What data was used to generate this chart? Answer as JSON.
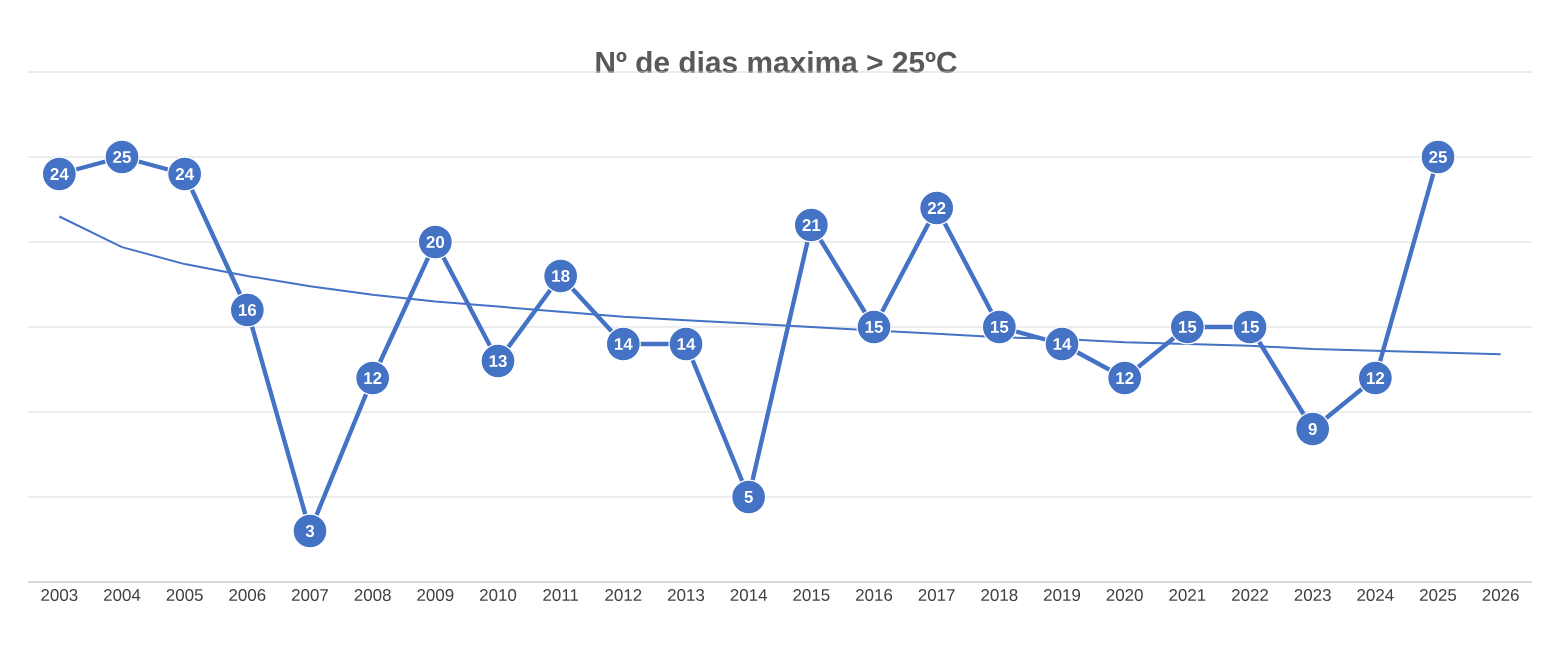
{
  "chart_data": {
    "type": "line",
    "title": "Nº de dias maxima > 25ºC",
    "categories": [
      "2003",
      "2004",
      "2005",
      "2006",
      "2007",
      "2008",
      "2009",
      "2010",
      "2011",
      "2012",
      "2013",
      "2014",
      "2015",
      "2016",
      "2017",
      "2018",
      "2019",
      "2020",
      "2021",
      "2022",
      "2023",
      "2024",
      "2025",
      "2026"
    ],
    "series": [
      {
        "color": "#4472c4",
        "marker": "circle",
        "values": [
          24,
          25,
          24,
          16,
          3,
          12,
          20,
          13,
          18,
          14,
          14,
          5,
          21,
          15,
          22,
          15,
          14,
          12,
          15,
          15,
          9,
          12,
          25,
          null
        ],
        "value_labels": [
          "24",
          "25",
          "24",
          "16",
          "3",
          "12",
          "20",
          "13",
          "18",
          "14",
          "14",
          "5",
          "21",
          "15",
          "22",
          "15",
          "14",
          "12",
          "15",
          "15",
          "9",
          "12",
          "25",
          null
        ]
      },
      {
        "type": "line",
        "color": "#4472c4",
        "marker": "none",
        "values": [
          21.5,
          19.7,
          18.7,
          18.0,
          17.4,
          16.9,
          16.5,
          16.2,
          15.9,
          15.6,
          15.4,
          15.2,
          15.0,
          14.8,
          14.6,
          14.4,
          14.3,
          14.1,
          14.0,
          13.9,
          13.7,
          13.6,
          13.5,
          13.4
        ]
      }
    ],
    "ylim": [
      0,
      30
    ],
    "yticks": [
      {
        "value": 0,
        "label": null
      },
      {
        "value": 5,
        "label": null
      },
      {
        "value": 10,
        "label": null
      },
      {
        "value": 15,
        "label": null
      },
      {
        "value": 20,
        "label": null
      },
      {
        "value": 25,
        "label": null
      },
      {
        "value": 30,
        "label": null
      }
    ],
    "grid": "y",
    "tick_labels": "x",
    "line_style": "solid"
  }
}
